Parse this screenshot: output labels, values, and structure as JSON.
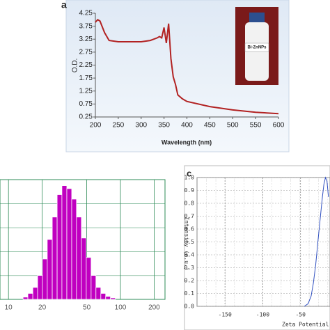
{
  "chart_data": [
    {
      "type": "line",
      "panel_label": "a",
      "x_label": "Wavelength (nm)",
      "y_label": "O.D.",
      "annotation": "Bi-ZnNPs",
      "x": [
        200,
        205,
        210,
        220,
        230,
        250,
        280,
        300,
        320,
        335,
        340,
        345,
        350,
        355,
        360,
        365,
        370,
        375,
        380,
        390,
        400,
        450,
        500,
        550,
        600
      ],
      "values": [
        3.9,
        4.0,
        3.95,
        3.5,
        3.2,
        3.15,
        3.15,
        3.15,
        3.2,
        3.3,
        3.35,
        3.3,
        3.7,
        3.1,
        3.85,
        2.5,
        1.8,
        1.5,
        1.1,
        0.95,
        0.85,
        0.65,
        0.52,
        0.43,
        0.38
      ],
      "color": "#b22222",
      "xlim": [
        200,
        600
      ],
      "ylim": [
        0.25,
        4.25
      ],
      "xticks": [
        200,
        250,
        300,
        350,
        400,
        450,
        500,
        550,
        600
      ],
      "yticks": [
        0.25,
        0.75,
        1.25,
        1.75,
        2.25,
        2.75,
        3.25,
        3.75,
        4.25
      ]
    },
    {
      "type": "histogram",
      "xscale": "log",
      "color": "#c000c0",
      "grid": true,
      "bins": [
        13.5,
        14.9,
        16.5,
        18.2,
        20.1,
        22.2,
        24.6,
        27.2,
        30.0,
        33.2,
        36.7,
        40.5,
        44.8,
        49.5,
        54.7,
        60.4,
        66.8,
        73.8,
        81.5,
        90.1
      ],
      "values": [
        0.3,
        0.8,
        1.6,
        3.2,
        5.4,
        8.0,
        11.0,
        14.0,
        15.2,
        14.8,
        13.4,
        11.0,
        8.2,
        5.6,
        3.2,
        1.6,
        0.8,
        0.4,
        0.2
      ],
      "xlim": [
        8.4,
        250
      ],
      "ylim": [
        0,
        16
      ],
      "xticks": [
        10,
        20,
        50,
        100,
        200
      ]
    },
    {
      "type": "line",
      "panel_label": "c",
      "x_label": "Zeta Potential (m",
      "y_label": "Intensity (a.u.)",
      "color": "#3050c0",
      "grid": true,
      "x": [
        -45,
        -40,
        -36,
        -33,
        -30,
        -27,
        -24,
        -21,
        -19,
        -17,
        -15,
        -13
      ],
      "values": [
        0,
        0.02,
        0.08,
        0.18,
        0.32,
        0.5,
        0.68,
        0.85,
        0.95,
        1.0,
        0.97,
        0.85
      ],
      "xlim": [
        -187,
        -11
      ],
      "ylim": [
        0,
        1.0
      ],
      "xticks": [
        -150,
        -100,
        -50
      ],
      "yticks": [
        {
          "value": 0,
          "label": "0.0"
        },
        0.1,
        0.2,
        0.3,
        0.4,
        0.5,
        0.6,
        0.7,
        0.8,
        0.9,
        {
          "value": 1,
          "label": "1.0"
        }
      ]
    }
  ]
}
